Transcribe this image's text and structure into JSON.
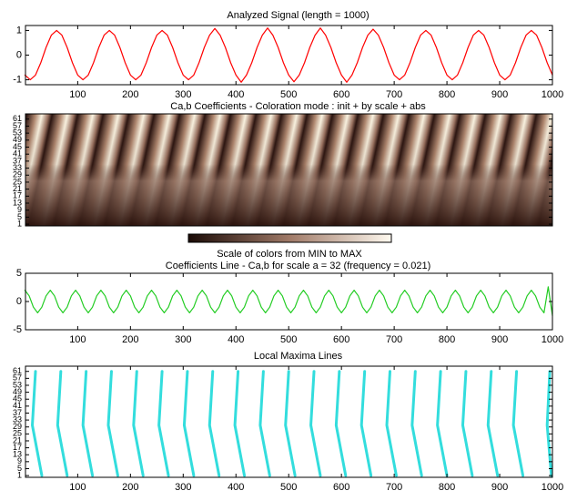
{
  "chart_data": [
    {
      "type": "line",
      "title": "Analyzed Signal  (length = 1000)",
      "x": [
        0,
        10,
        20,
        30,
        40,
        50,
        60,
        70,
        80,
        90,
        100,
        110,
        120,
        130,
        140,
        150,
        160,
        170,
        180,
        190,
        200,
        210,
        220,
        230,
        240,
        250,
        260,
        270,
        280,
        290,
        300,
        310,
        320,
        330,
        340,
        350,
        360,
        370,
        380,
        390,
        400,
        410,
        420,
        430,
        440,
        450,
        460,
        470,
        480,
        490,
        500,
        510,
        520,
        530,
        540,
        550,
        560,
        570,
        580,
        590,
        600,
        610,
        620,
        630,
        640,
        650,
        660,
        670,
        680,
        690,
        700,
        710,
        720,
        730,
        740,
        750,
        760,
        770,
        780,
        790,
        800,
        810,
        820,
        830,
        840,
        850,
        860,
        870,
        880,
        890,
        900,
        910,
        920,
        930,
        940,
        950,
        960,
        970,
        980,
        990,
        1000
      ],
      "series": [
        {
          "color": "#ff0000",
          "values": [
            -0.809,
            -1,
            -0.809,
            -0.309,
            0.309,
            0.809,
            1,
            0.809,
            0.309,
            -0.309,
            -0.809,
            -1,
            -0.809,
            -0.309,
            0.309,
            0.809,
            1,
            0.809,
            0.309,
            -0.309,
            -0.809,
            -1,
            -0.809,
            -0.309,
            0.309,
            0.809,
            1,
            0.809,
            0.309,
            -0.309,
            -0.809,
            -1,
            -0.809,
            -0.309,
            0.309,
            0.809,
            1.08,
            0.809,
            0.309,
            -0.309,
            -0.809,
            -1.1,
            -0.809,
            -0.309,
            0.309,
            0.809,
            1.1,
            0.809,
            0.309,
            -0.309,
            -0.809,
            -1.08,
            -0.809,
            -0.309,
            0.309,
            0.809,
            1.1,
            0.809,
            0.309,
            -0.309,
            -0.809,
            -1.1,
            -0.809,
            -0.309,
            0.309,
            0.809,
            1.05,
            0.809,
            0.309,
            -0.309,
            -0.809,
            -1,
            -0.809,
            -0.309,
            0.309,
            0.809,
            1,
            0.809,
            0.309,
            -0.309,
            -0.809,
            -1,
            -0.809,
            -0.309,
            0.309,
            0.809,
            1,
            0.809,
            0.309,
            -0.309,
            -0.809,
            -1,
            -0.809,
            -0.309,
            0.309,
            0.809,
            1,
            0.809,
            0.309,
            -0.309,
            -0.809
          ]
        }
      ],
      "xlim": [
        1,
        1000
      ],
      "xticks": [
        100,
        200,
        300,
        400,
        500,
        600,
        700,
        800,
        900,
        1000
      ],
      "ylim": [
        -1.2,
        1.2
      ],
      "yticks": [
        -1,
        0,
        1
      ]
    },
    {
      "type": "heatmap",
      "title": "Ca,b Coefficients  - Coloration mode : init + by scale + abs",
      "ylim": [
        0,
        64
      ],
      "yticks": [
        1,
        5,
        9,
        13,
        17,
        21,
        25,
        29,
        33,
        37,
        41,
        45,
        49,
        53,
        57,
        61
      ],
      "colorbar_label": "Scale of colors from MIN to MAX"
    },
    {
      "type": "line",
      "title": "Coefficients Line - Ca,b  for scale a = 32  (frequency =  0.021)",
      "x": [
        0,
        8,
        16,
        24,
        32,
        40,
        48,
        56,
        64,
        72,
        80,
        88,
        96,
        104,
        112,
        120,
        128,
        136,
        144,
        152,
        160,
        168,
        176,
        184,
        192,
        200,
        208,
        216,
        224,
        232,
        240,
        248,
        256,
        264,
        272,
        280,
        288,
        296,
        304,
        312,
        320,
        328,
        336,
        344,
        352,
        360,
        368,
        376,
        384,
        392,
        400,
        408,
        416,
        424,
        432,
        440,
        448,
        456,
        464,
        472,
        480,
        488,
        496,
        504,
        512,
        520,
        528,
        536,
        544,
        552,
        560,
        568,
        576,
        584,
        592,
        600,
        608,
        616,
        624,
        632,
        640,
        648,
        656,
        664,
        672,
        680,
        688,
        696,
        704,
        712,
        720,
        728,
        736,
        744,
        752,
        760,
        768,
        776,
        784,
        792,
        800,
        808,
        816,
        824,
        832,
        840,
        848,
        856,
        864,
        872,
        880,
        888,
        896,
        904,
        912,
        920,
        928,
        936,
        944,
        952,
        960,
        968,
        976,
        984,
        992,
        1000
      ],
      "series": [
        {
          "color": "#22cc22",
          "values": [
            2,
            1,
            -1,
            -2,
            -1,
            1,
            2,
            1,
            -1,
            -2,
            -1,
            1,
            2,
            1,
            -1,
            -2,
            -1,
            1,
            2,
            1,
            -1,
            -2,
            -1,
            1,
            2,
            1,
            -1,
            -2,
            -1,
            1,
            2,
            1,
            -1,
            -2,
            -1,
            1,
            2,
            1,
            -1,
            -2,
            -1,
            1,
            2,
            1,
            -1,
            -2,
            -1,
            1,
            2,
            1,
            -1,
            -2,
            -1,
            1,
            2,
            1,
            -1,
            -2,
            -1,
            1,
            2,
            1,
            -1,
            -2,
            -1,
            1,
            2,
            1,
            -1,
            -2,
            -1,
            1,
            2,
            1,
            -1,
            -2,
            -1,
            1,
            2,
            1,
            -1,
            -2,
            -1,
            1,
            2,
            1,
            -1,
            -2,
            -1,
            1,
            2,
            1,
            -1,
            -2,
            -1,
            1,
            2,
            1,
            -1,
            -2,
            -1,
            1,
            2,
            1,
            -1,
            -2,
            -1,
            1,
            2,
            1,
            -1,
            -2,
            -1,
            1,
            2,
            1,
            -1,
            -2,
            -1,
            1,
            2,
            1,
            -1,
            -2,
            2.6,
            -2.5
          ]
        }
      ],
      "xlim": [
        1,
        1000
      ],
      "xticks": [
        100,
        200,
        300,
        400,
        500,
        600,
        700,
        800,
        900,
        1000
      ],
      "ylim": [
        -5,
        5
      ],
      "yticks": [
        -5,
        0,
        5
      ]
    },
    {
      "type": "line",
      "title": "Local Maxima Lines",
      "x": [
        20,
        14,
        32,
        null,
        68,
        62,
        80,
        null,
        116,
        110,
        128,
        null,
        164,
        158,
        176,
        null,
        212,
        206,
        224,
        null,
        260,
        254,
        272,
        null,
        308,
        302,
        320,
        null,
        356,
        350,
        368,
        null,
        404,
        398,
        416,
        null,
        452,
        446,
        464,
        null,
        500,
        494,
        512,
        null,
        548,
        542,
        560,
        null,
        596,
        590,
        608,
        null,
        644,
        638,
        656,
        null,
        692,
        686,
        704,
        null,
        740,
        734,
        752,
        null,
        788,
        782,
        800,
        null,
        836,
        830,
        848,
        null,
        884,
        878,
        896,
        null,
        932,
        926,
        944,
        null,
        995,
        990,
        998
      ],
      "series": [
        {
          "color": "#33dddd",
          "values": [
            61,
            30,
            1,
            null,
            61,
            30,
            1,
            null,
            61,
            30,
            1,
            null,
            61,
            30,
            1,
            null,
            61,
            30,
            1,
            null,
            61,
            30,
            1,
            null,
            61,
            30,
            1,
            null,
            61,
            30,
            1,
            null,
            61,
            30,
            1,
            null,
            61,
            30,
            1,
            null,
            61,
            30,
            1,
            null,
            61,
            30,
            1,
            null,
            61,
            30,
            1,
            null,
            61,
            30,
            1,
            null,
            61,
            30,
            1,
            null,
            61,
            30,
            1,
            null,
            61,
            30,
            1,
            null,
            61,
            30,
            1,
            null,
            61,
            30,
            1,
            null,
            61,
            30,
            1,
            null,
            61,
            30,
            1
          ]
        }
      ],
      "xlim": [
        1,
        1000
      ],
      "xticks": [
        100,
        200,
        300,
        400,
        500,
        600,
        700,
        800,
        900,
        1000
      ],
      "ylim": [
        0,
        64
      ],
      "yticks": [
        1,
        5,
        9,
        13,
        17,
        21,
        25,
        29,
        33,
        37,
        41,
        45,
        49,
        53,
        57,
        61
      ]
    }
  ]
}
